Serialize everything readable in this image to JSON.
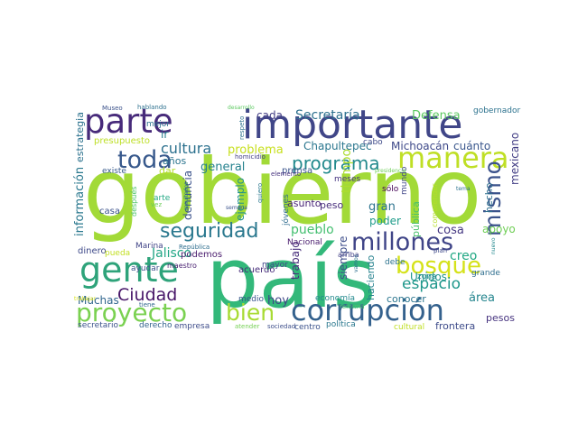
{
  "wordcloud": {
    "palette": "viridis",
    "background": "#ffffff",
    "words": [
      {
        "text": "gobierno",
        "color": "#a2da37"
      },
      {
        "text": "país",
        "color": "#33b87a"
      },
      {
        "text": "importante",
        "color": "#404688"
      },
      {
        "text": "corrupción",
        "color": "#34618d"
      },
      {
        "text": "gente",
        "color": "#2ea37a"
      },
      {
        "text": "parte",
        "color": "#472a7a"
      },
      {
        "text": "manera",
        "color": "#bfdf25"
      },
      {
        "text": "proyecto",
        "color": "#7ad151"
      },
      {
        "text": "millones",
        "color": "#404588"
      },
      {
        "text": "bosque",
        "color": "#d5e21a"
      },
      {
        "text": "toda",
        "color": "#38598c"
      },
      {
        "text": "mismo",
        "color": "#3b528b"
      },
      {
        "text": "bien",
        "color": "#a8db34"
      },
      {
        "text": "seguridad",
        "color": "#2a788e"
      },
      {
        "text": "programa",
        "color": "#238a8d"
      },
      {
        "text": "Ciudad",
        "color": "#481769"
      },
      {
        "text": "espacio",
        "color": "#1f978b"
      },
      {
        "text": "cultura",
        "color": "#2c718e"
      },
      {
        "text": "Secretaría",
        "color": "#2d708e"
      },
      {
        "text": "Defensa",
        "color": "#5ec962"
      },
      {
        "text": "problema",
        "color": "#c8e020"
      },
      {
        "text": "general",
        "color": "#26828e"
      },
      {
        "text": "Chapultepec",
        "color": "#2a768e"
      },
      {
        "text": "Michoacán",
        "color": "#3e4989"
      },
      {
        "text": "cuánto",
        "color": "#39568c"
      },
      {
        "text": "cada",
        "color": "#433e85"
      },
      {
        "text": "ir",
        "color": "#277f8e"
      },
      {
        "text": "años",
        "color": "#2b748e"
      },
      {
        "text": "dar",
        "color": "#b5de2b"
      },
      {
        "text": "denuncia",
        "color": "#3b528b"
      },
      {
        "text": "ejemplo",
        "color": "#21918c"
      },
      {
        "text": "asunto",
        "color": "#482475"
      },
      {
        "text": "tiempo",
        "color": "#addc30"
      },
      {
        "text": "gran",
        "color": "#2c738e"
      },
      {
        "text": "peso",
        "color": "#472d7b"
      },
      {
        "text": "pueblo",
        "color": "#44bf70"
      },
      {
        "text": "creo",
        "color": "#22a884"
      },
      {
        "text": "cosa",
        "color": "#453882"
      },
      {
        "text": "apoyo",
        "color": "#70cf57"
      },
      {
        "text": "poder",
        "color": "#1e9c89"
      },
      {
        "text": "pública",
        "color": "#4ac16d"
      },
      {
        "text": "Unidos",
        "color": "#1f968b"
      },
      {
        "text": "mexicano",
        "color": "#433e85"
      },
      {
        "text": "hecho",
        "color": "#2e6f8e"
      },
      {
        "text": "gobernador",
        "color": "#2c728e"
      },
      {
        "text": "Jalisco",
        "color": "#21a685"
      },
      {
        "text": "trabajo",
        "color": "#472d7b"
      },
      {
        "text": "siempre",
        "color": "#3d4d8a"
      },
      {
        "text": "haciendo",
        "color": "#26828e"
      },
      {
        "text": "hoy",
        "color": "#3f4788"
      },
      {
        "text": "conocer",
        "color": "#2b758e"
      },
      {
        "text": "área",
        "color": "#25858e"
      },
      {
        "text": "Muchas",
        "color": "#31668e"
      },
      {
        "text": "información",
        "color": "#2a788e"
      },
      {
        "text": "estrategia",
        "color": "#2c728e"
      },
      {
        "text": "presupuesto",
        "color": "#bddf26"
      },
      {
        "text": "existe",
        "color": "#375a8c"
      },
      {
        "text": "después",
        "color": "#4ec36b"
      },
      {
        "text": "casa",
        "color": "#3b528b"
      },
      {
        "text": "arte",
        "color": "#22a884"
      },
      {
        "text": "vez",
        "color": "#6ccd5a"
      },
      {
        "text": "dinero",
        "color": "#3e4989"
      },
      {
        "text": "pueda",
        "color": "#c2df23"
      },
      {
        "text": "Marina",
        "color": "#414487"
      },
      {
        "text": "ayudar",
        "color": "#3b528b"
      },
      {
        "text": "República",
        "color": "#2e6e8e"
      },
      {
        "text": "podemos",
        "color": "#481a6c"
      },
      {
        "text": "maestro",
        "color": "#482071"
      },
      {
        "text": "acuerdo",
        "color": "#472c7a"
      },
      {
        "text": "Nacional",
        "color": "#481b6d"
      },
      {
        "text": "prensa",
        "color": "#3a548c"
      },
      {
        "text": "mayor",
        "color": "#3f4889"
      },
      {
        "text": "jóvenes",
        "color": "#2f6c8e"
      },
      {
        "text": "quiero",
        "color": "#2a788e"
      },
      {
        "text": "elemento",
        "color": "#46327e"
      },
      {
        "text": "meses",
        "color": "#463480"
      },
      {
        "text": "mundo",
        "color": "#404688"
      },
      {
        "text": "sólo",
        "color": "#440154"
      },
      {
        "text": "debe",
        "color": "#2c728e"
      },
      {
        "text": "cabo",
        "color": "#3e4a89"
      },
      {
        "text": "arriba",
        "color": "#424086"
      },
      {
        "text": "zona",
        "color": "#23888e"
      },
      {
        "text": "comprender",
        "color": "#b5de2b"
      },
      {
        "text": "grande",
        "color": "#2e6e8e"
      },
      {
        "text": "pesos",
        "color": "#46337f"
      },
      {
        "text": "frontera",
        "color": "#3e4c8a"
      },
      {
        "text": "cultural",
        "color": "#c0df25"
      },
      {
        "text": "política",
        "color": "#2a788e"
      },
      {
        "text": "centro",
        "color": "#3b528b"
      },
      {
        "text": "sociedad",
        "color": "#3d4e8a"
      },
      {
        "text": "atender",
        "color": "#75d054"
      },
      {
        "text": "empresa",
        "color": "#3e4c8a"
      },
      {
        "text": "derecho",
        "color": "#33638d"
      },
      {
        "text": "secretario",
        "color": "#3b528b"
      },
      {
        "text": "economía",
        "color": "#23898e"
      },
      {
        "text": "medio",
        "color": "#39568c"
      },
      {
        "text": "reforma",
        "color": "#4ac16d"
      },
      {
        "text": "Museo",
        "color": "#3b528b"
      },
      {
        "text": "hablando",
        "color": "#2d708e"
      },
      {
        "text": "desarrollo",
        "color": "#5ec962"
      },
      {
        "text": "respeto",
        "color": "#2d718e"
      },
      {
        "text": "mejor",
        "color": "#2c728e"
      },
      {
        "text": "homicidio",
        "color": "#433e85"
      },
      {
        "text": "presidencia",
        "color": "#6ece58"
      },
      {
        "text": "trabajar",
        "color": "#d8e219"
      },
      {
        "text": "tiene",
        "color": "#31688e"
      },
      {
        "text": "resultados",
        "color": "#2a788e"
      },
      {
        "text": "semana",
        "color": "#3b528b"
      },
      {
        "text": "vamos",
        "color": "#2e6f8e"
      },
      {
        "text": "plan",
        "color": "#3e4989"
      },
      {
        "text": "tema",
        "color": "#2c718e"
      },
      {
        "text": "nuevo",
        "color": "#23898e"
      }
    ]
  }
}
